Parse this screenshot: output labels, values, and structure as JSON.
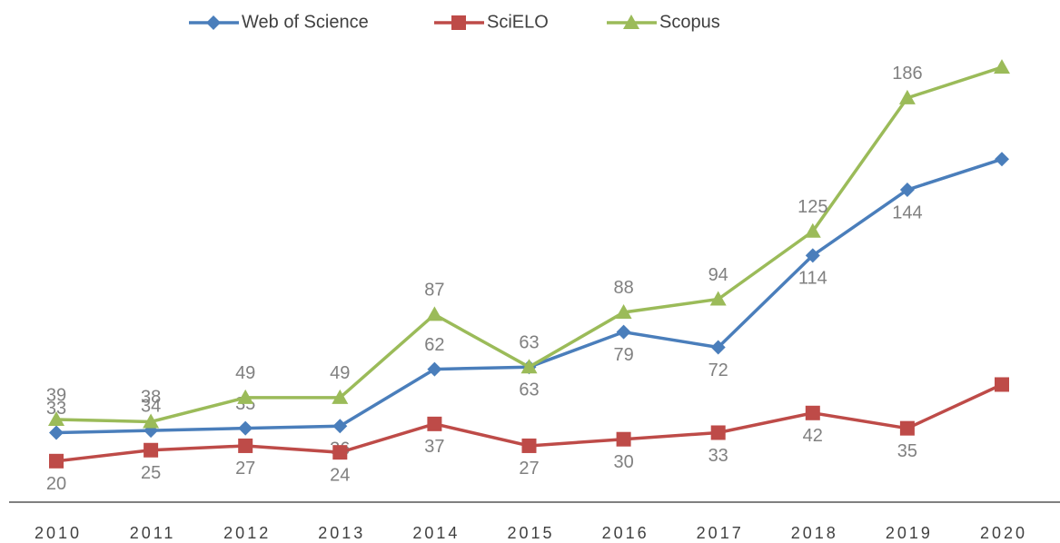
{
  "chart_data": {
    "type": "line",
    "categories": [
      "2010",
      "2011",
      "2012",
      "2013",
      "2014",
      "2015",
      "2016",
      "2017",
      "2018",
      "2019",
      "2020"
    ],
    "series": [
      {
        "name": "Web of Science",
        "color": "#4a7ebb",
        "marker": "diamond",
        "values": [
          33,
          34,
          35,
          36,
          62,
          63,
          79,
          72,
          114,
          144,
          158
        ]
      },
      {
        "name": "SciELO",
        "color": "#be4b48",
        "marker": "square",
        "values": [
          20,
          25,
          27,
          24,
          37,
          27,
          30,
          33,
          42,
          35,
          55
        ]
      },
      {
        "name": "Scopus",
        "color": "#9bbb59",
        "marker": "triangle",
        "values": [
          39,
          38,
          49,
          49,
          87,
          63,
          88,
          94,
          125,
          186,
          200
        ]
      }
    ],
    "ylim": [
      0,
      210
    ],
    "legend": "top"
  }
}
